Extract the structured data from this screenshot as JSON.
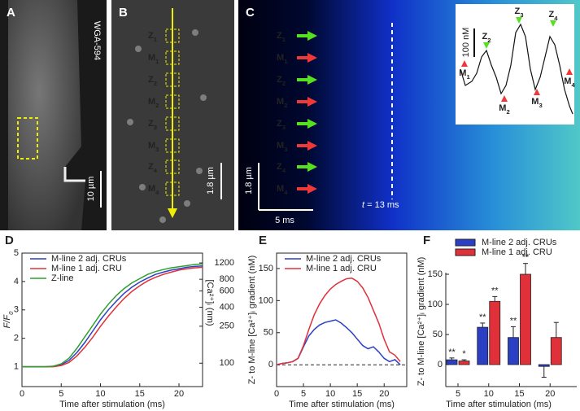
{
  "panels": [
    {
      "letter": "A",
      "label": "WGA-594",
      "scale_bar": "10 µm"
    },
    {
      "letter": "B",
      "markers": [
        {
          "base": "Z",
          "sub": "1"
        },
        {
          "base": "M",
          "sub": "1"
        },
        {
          "base": "Z",
          "sub": "2"
        },
        {
          "base": "M",
          "sub": "2"
        },
        {
          "base": "Z",
          "sub": "3"
        },
        {
          "base": "M",
          "sub": "3"
        },
        {
          "base": "Z",
          "sub": "4"
        },
        {
          "base": "M",
          "sub": "4"
        }
      ],
      "scale_bar": "1.8 µm"
    },
    {
      "letter": "C",
      "markers": [
        {
          "base": "Z",
          "sub": "1"
        },
        {
          "base": "M",
          "sub": "1"
        },
        {
          "base": "Z",
          "sub": "2"
        },
        {
          "base": "M",
          "sub": "2"
        },
        {
          "base": "Z",
          "sub": "3"
        },
        {
          "base": "M",
          "sub": "3"
        },
        {
          "base": "Z",
          "sub": "4"
        },
        {
          "base": "M",
          "sub": "4"
        }
      ],
      "scale_bar_y": "1.8 µm",
      "scale_bar_x": "5 ms",
      "time_label": {
        "italic": "t",
        "rest": " = 13 ms"
      },
      "inset_scale": "100 nM",
      "inset_labels": [
        {
          "base": "M",
          "sub": "1"
        },
        {
          "base": "Z",
          "sub": "2"
        },
        {
          "base": "M",
          "sub": "2"
        },
        {
          "base": "Z",
          "sub": "3"
        },
        {
          "base": "M",
          "sub": "3"
        },
        {
          "base": "Z",
          "sub": "4"
        },
        {
          "base": "M",
          "sub": "4"
        }
      ]
    }
  ],
  "chart_data": [
    {
      "type": "line",
      "letter": "D",
      "x": [
        0,
        1,
        2,
        3,
        4,
        5,
        6,
        7,
        8,
        9,
        10,
        11,
        12,
        13,
        14,
        15,
        16,
        17,
        18,
        19,
        20,
        21,
        22,
        23
      ],
      "xlim": [
        0,
        23
      ],
      "xticks": [
        0,
        5,
        10,
        15,
        20
      ],
      "ylim": [
        0.3,
        5
      ],
      "yticks": [
        1,
        2,
        3,
        4,
        5
      ],
      "y2lim": [
        56,
        1530
      ],
      "y2scale": "log",
      "y2ticks": [
        100,
        250,
        400,
        600,
        800,
        1200
      ],
      "xlabel": "Time after stimulation (ms)",
      "ylabel": {
        "base": "F/F",
        "sub": "0"
      },
      "y2label": "[Ca²⁺]ᵢ (nm)",
      "legend": "top-left",
      "series": [
        {
          "name": "M-line 2 adj. CRUs",
          "color": "#2b3fc4",
          "values": [
            1,
            1,
            1,
            1,
            1.01,
            1.07,
            1.22,
            1.5,
            1.85,
            2.25,
            2.65,
            3.0,
            3.3,
            3.58,
            3.8,
            3.98,
            4.12,
            4.25,
            4.33,
            4.4,
            4.45,
            4.5,
            4.53,
            4.55
          ]
        },
        {
          "name": "M-line 1 adj. CRU",
          "color": "#e0303a",
          "values": [
            1,
            1,
            1,
            1,
            1,
            1.04,
            1.15,
            1.38,
            1.68,
            2.03,
            2.42,
            2.78,
            3.1,
            3.4,
            3.65,
            3.85,
            4.02,
            4.15,
            4.25,
            4.33,
            4.4,
            4.45,
            4.48,
            4.5
          ]
        },
        {
          "name": "Z-line",
          "color": "#2ca02c",
          "values": [
            1,
            1,
            1,
            1,
            1.02,
            1.1,
            1.3,
            1.65,
            2.05,
            2.45,
            2.85,
            3.2,
            3.5,
            3.75,
            3.95,
            4.1,
            4.25,
            4.35,
            4.42,
            4.48,
            4.52,
            4.56,
            4.6,
            4.62
          ]
        }
      ]
    },
    {
      "type": "line",
      "letter": "E",
      "x": [
        0,
        1,
        2,
        3,
        4,
        5,
        6,
        7,
        8,
        9,
        10,
        11,
        12,
        13,
        14,
        15,
        16,
        17,
        18,
        19,
        20,
        21,
        22,
        23
      ],
      "xlim": [
        0,
        24.2
      ],
      "xticks": [
        0,
        5,
        10,
        15,
        20
      ],
      "ylim": [
        -34,
        174
      ],
      "yticks": [
        0,
        50,
        100,
        150
      ],
      "hline": {
        "value": 0,
        "style": "dashed"
      },
      "xlabel": "Time after stimulation (ms)",
      "ylabel": "Z- to M-line [Ca²⁺]ᵢ gradient (nM)",
      "legend": "top-left",
      "series": [
        {
          "name": "M-line 2 adj. CRUs",
          "color": "#2b3fc4",
          "values": [
            0,
            2,
            3,
            5,
            10,
            28,
            45,
            55,
            62,
            66,
            68,
            70,
            65,
            58,
            50,
            40,
            30,
            25,
            28,
            20,
            10,
            5,
            8,
            0
          ]
        },
        {
          "name": "M-line 1 adj. CRU",
          "color": "#e0303a",
          "values": [
            0,
            2,
            3,
            5,
            10,
            30,
            55,
            78,
            95,
            108,
            118,
            125,
            130,
            134,
            135,
            130,
            120,
            105,
            85,
            65,
            40,
            20,
            15,
            5
          ]
        }
      ]
    },
    {
      "type": "bar",
      "letter": "F",
      "categories": [
        "5",
        "10",
        "15",
        "20"
      ],
      "ylim": [
        -36.5,
        152.7
      ],
      "yticks": [
        0,
        50,
        100,
        150
      ],
      "xlabel": "Time after stimulation (ms)",
      "ylabel": "Z- to M-line [Ca²⁺]ᵢ gradient (nM)",
      "legend": "top-left",
      "series": [
        {
          "name": "M-line 2 adj. CRUs",
          "color": "#2b3fc4",
          "values": [
            8,
            62,
            45,
            -3
          ],
          "errors": [
            3,
            7,
            18,
            18
          ],
          "annotations": [
            "**",
            "**",
            "**",
            null
          ]
        },
        {
          "name": "M-line 1 adj. CRU",
          "color": "#e0303a",
          "values": [
            6,
            105,
            150,
            45
          ],
          "errors": [
            2,
            8,
            18,
            25
          ],
          "annotations": [
            "*",
            "**",
            "**",
            null
          ]
        }
      ]
    }
  ]
}
